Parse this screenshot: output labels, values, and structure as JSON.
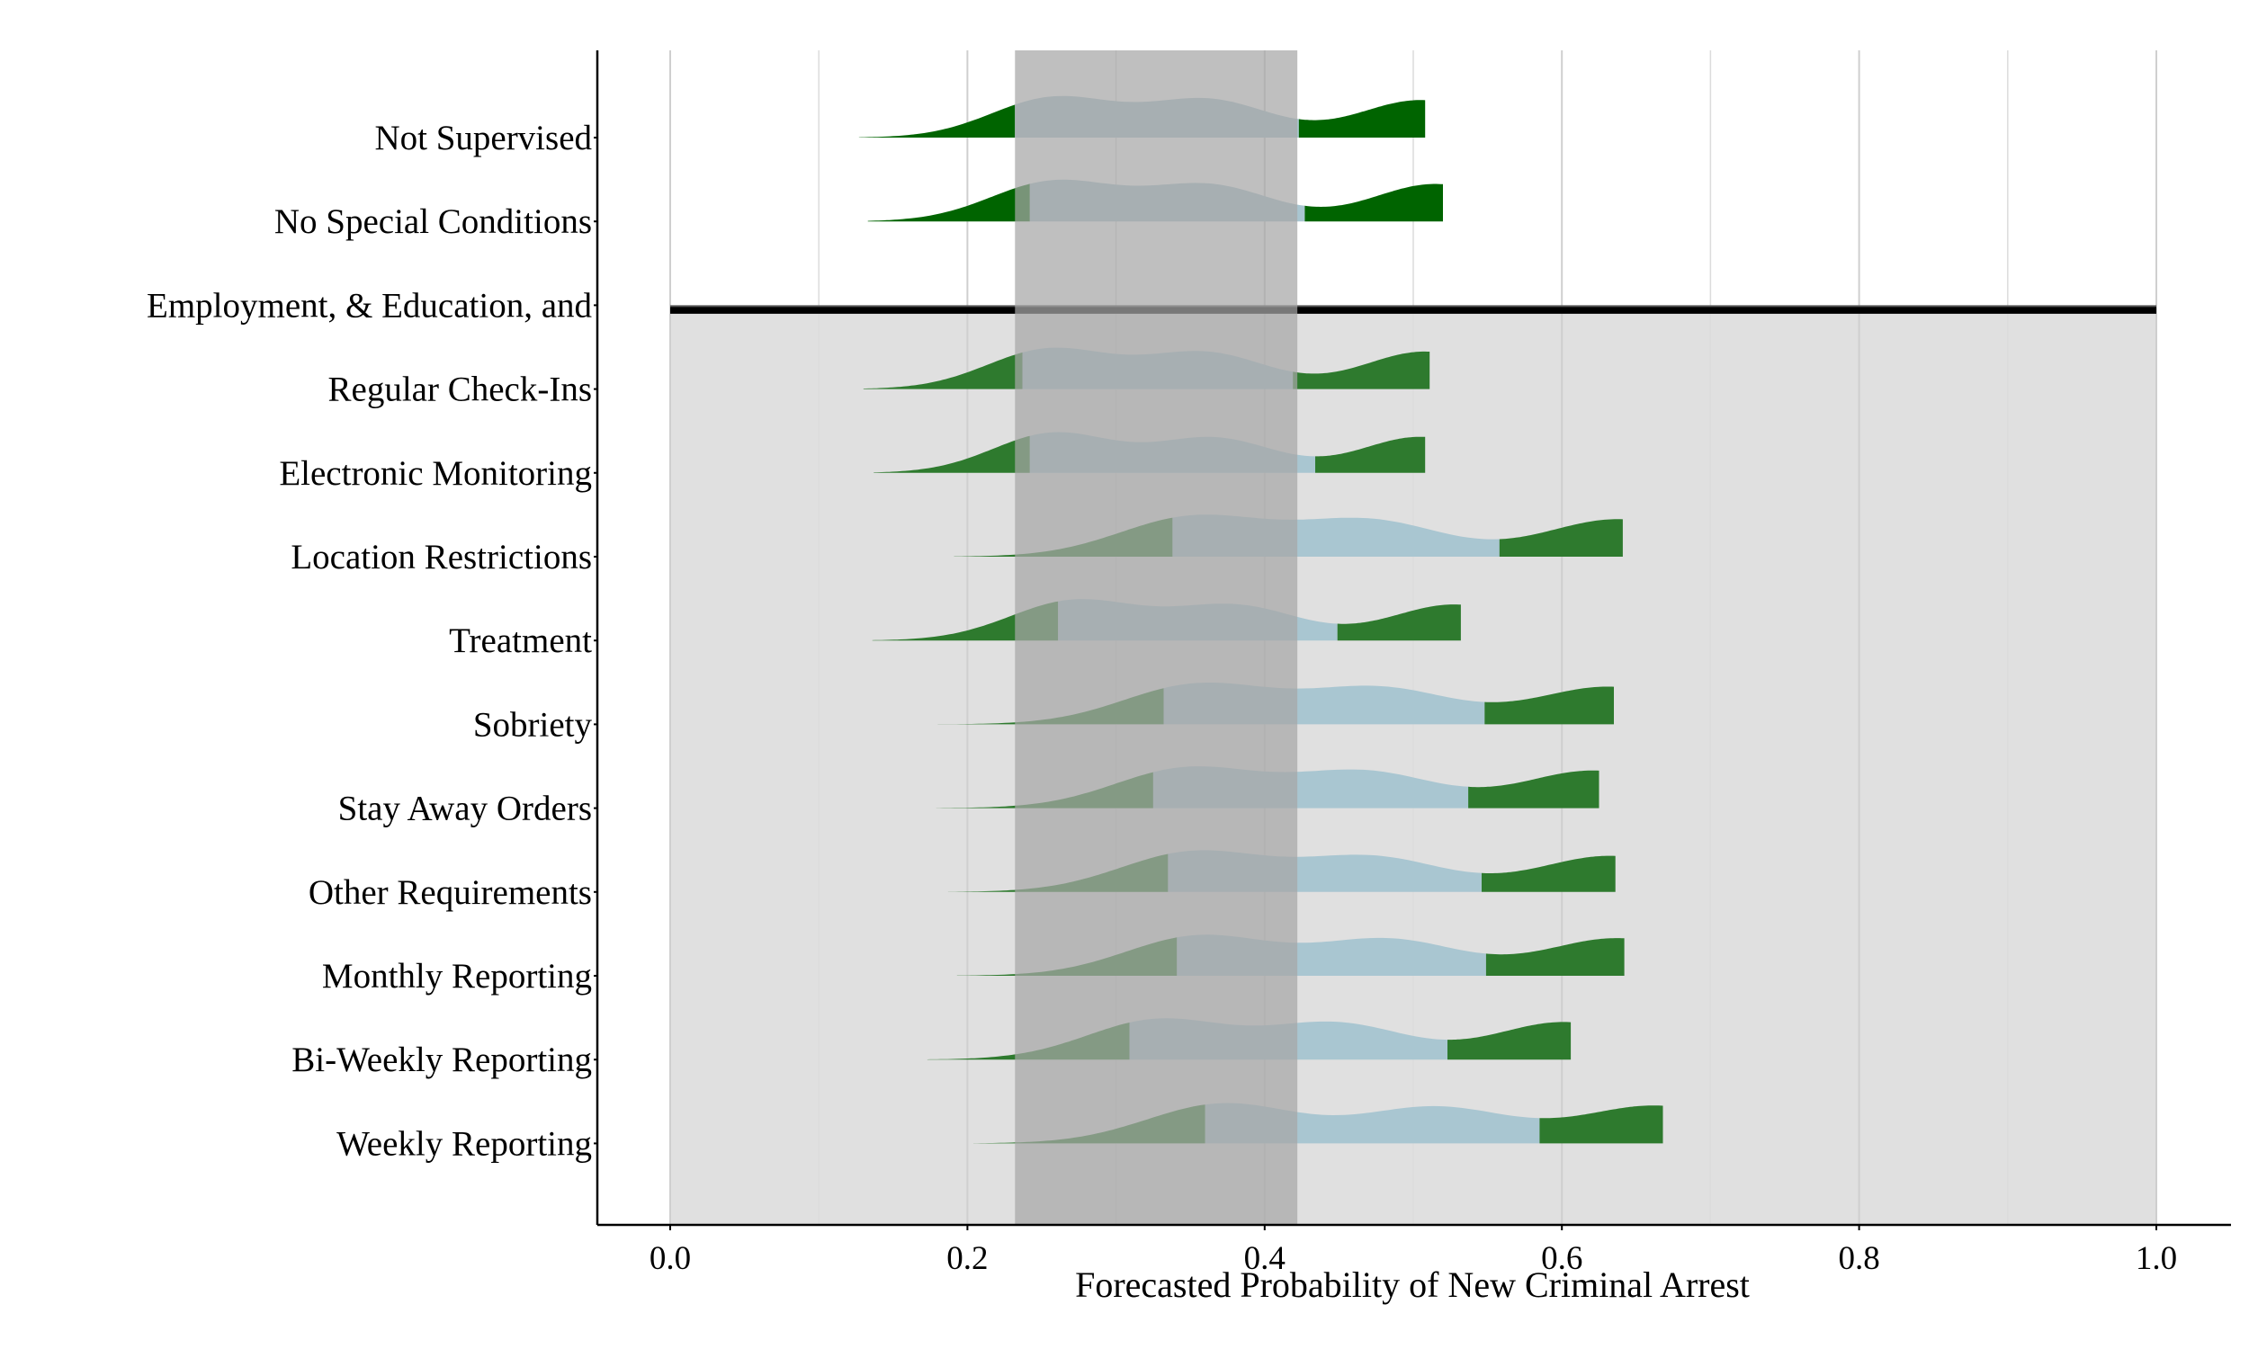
{
  "chart_data": {
    "type": "ridgeline",
    "title": "",
    "xlabel": "Forecasted Probability of New Criminal Arrest",
    "ylabel": "",
    "xlim": [
      0,
      1
    ],
    "x_ticks": [
      "0.0",
      "0.2",
      "0.4",
      "0.6",
      "0.8",
      "1.0"
    ],
    "reference_band": {
      "from": 0.232,
      "to": 0.422,
      "color": "#a6a6a6"
    },
    "separator_label": "Employment, & Education, and",
    "shaded_region_color": "#e0e0e0",
    "colors": {
      "tail": "#2e7a2e",
      "tail_top": "#006400",
      "center": "#a9c6d1"
    },
    "categories": [
      {
        "label": "Not Supervised",
        "min": 0.127,
        "q_low": 0.232,
        "q_high": 0.423,
        "max": 0.508,
        "peaks": [
          [
            0.258,
            0.55
          ],
          [
            0.362,
            0.52
          ],
          [
            0.505,
            0.52
          ]
        ]
      },
      {
        "label": "No Special Conditions",
        "min": 0.133,
        "q_low": 0.242,
        "q_high": 0.427,
        "max": 0.52,
        "peaks": [
          [
            0.258,
            0.55
          ],
          [
            0.362,
            0.5
          ],
          [
            0.515,
            0.52
          ]
        ]
      },
      {
        "label": "Employment, & Education, and",
        "separator": true
      },
      {
        "label": "Regular Check-Ins",
        "min": 0.13,
        "q_low": 0.237,
        "q_high": 0.419,
        "max": 0.511,
        "peaks": [
          [
            0.255,
            0.55
          ],
          [
            0.36,
            0.5
          ],
          [
            0.508,
            0.52
          ]
        ]
      },
      {
        "label": "Electronic Monitoring",
        "min": 0.137,
        "q_low": 0.242,
        "q_high": 0.434,
        "max": 0.508,
        "peaks": [
          [
            0.258,
            0.55
          ],
          [
            0.366,
            0.48
          ],
          [
            0.505,
            0.5
          ]
        ]
      },
      {
        "label": "Location Restrictions",
        "min": 0.191,
        "q_low": 0.338,
        "q_high": 0.558,
        "max": 0.641,
        "peaks": [
          [
            0.352,
            0.55
          ],
          [
            0.47,
            0.5
          ],
          [
            0.638,
            0.52
          ]
        ]
      },
      {
        "label": "Treatment",
        "min": 0.136,
        "q_low": 0.261,
        "q_high": 0.449,
        "max": 0.532,
        "peaks": [
          [
            0.272,
            0.55
          ],
          [
            0.38,
            0.48
          ],
          [
            0.528,
            0.5
          ]
        ]
      },
      {
        "label": "Sobriety",
        "min": 0.18,
        "q_low": 0.332,
        "q_high": 0.548,
        "max": 0.635,
        "peaks": [
          [
            0.355,
            0.55
          ],
          [
            0.477,
            0.5
          ],
          [
            0.632,
            0.52
          ]
        ]
      },
      {
        "label": "Stay Away Orders",
        "min": 0.179,
        "q_low": 0.325,
        "q_high": 0.537,
        "max": 0.625,
        "peaks": [
          [
            0.348,
            0.55
          ],
          [
            0.467,
            0.5
          ],
          [
            0.622,
            0.52
          ]
        ]
      },
      {
        "label": "Other Requirements",
        "min": 0.187,
        "q_low": 0.335,
        "q_high": 0.546,
        "max": 0.636,
        "peaks": [
          [
            0.352,
            0.55
          ],
          [
            0.472,
            0.48
          ],
          [
            0.633,
            0.5
          ]
        ]
      },
      {
        "label": "Monthly Reporting",
        "min": 0.193,
        "q_low": 0.341,
        "q_high": 0.549,
        "max": 0.642,
        "peaks": [
          [
            0.356,
            0.55
          ],
          [
            0.483,
            0.5
          ],
          [
            0.638,
            0.52
          ]
        ]
      },
      {
        "label": "Bi-Weekly Reporting",
        "min": 0.173,
        "q_low": 0.309,
        "q_high": 0.523,
        "max": 0.606,
        "peaks": [
          [
            0.328,
            0.55
          ],
          [
            0.448,
            0.5
          ],
          [
            0.602,
            0.52
          ]
        ]
      },
      {
        "label": "Weekly Reporting",
        "min": 0.204,
        "q_low": 0.36,
        "q_high": 0.585,
        "max": 0.668,
        "peaks": [
          [
            0.372,
            0.55
          ],
          [
            0.515,
            0.5
          ],
          [
            0.664,
            0.52
          ]
        ]
      }
    ]
  }
}
